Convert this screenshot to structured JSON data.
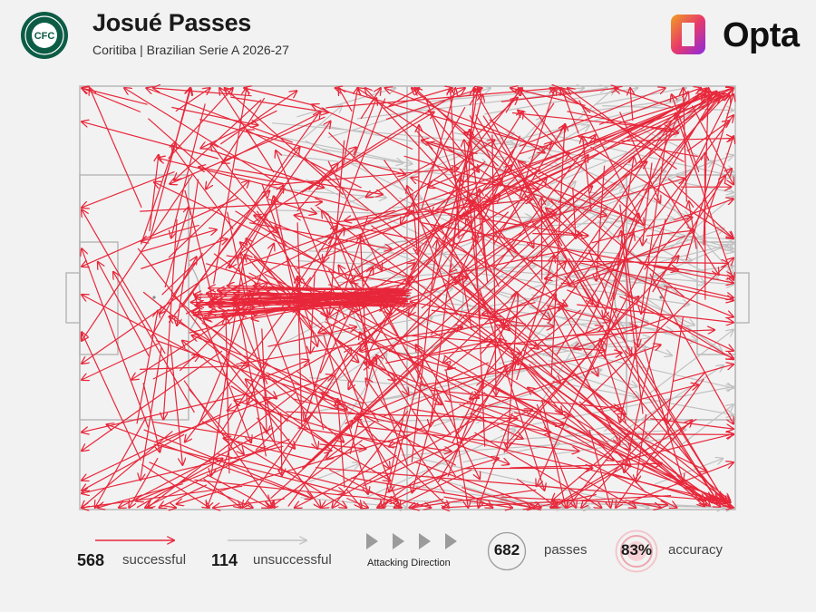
{
  "header": {
    "title": "Josué Passes",
    "subtitle": "Coritiba | Brazilian Serie A 2026-27",
    "crest_letters": "CFC",
    "brand": "Opta"
  },
  "legend": {
    "successful_count": "568",
    "successful_label": "successful",
    "unsuccessful_count": "114",
    "unsuccessful_label": "unsuccessful",
    "direction_label": "Attacking Direction",
    "passes_count": "682",
    "passes_label": "passes",
    "accuracy_value": "83%",
    "accuracy_label": "accuracy"
  },
  "colors": {
    "successful": "#e8273a",
    "unsuccessful": "#c2c2c2",
    "pitch_line": "#b5b5b5",
    "crest": "#0c5c45"
  },
  "chart_data": {
    "type": "pass-map",
    "attacking_direction": "left-to-right",
    "pitch_length": 105,
    "pitch_width": 68,
    "successful_passes": 568,
    "unsuccessful_passes": 114,
    "total_passes": 682,
    "accuracy_pct": 83
  }
}
